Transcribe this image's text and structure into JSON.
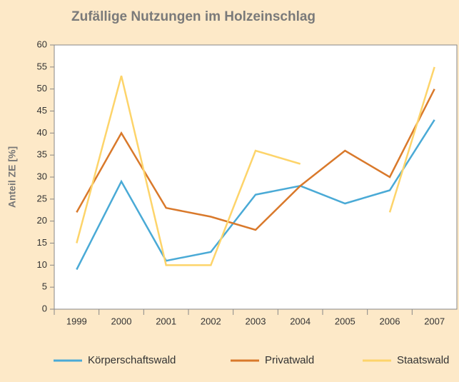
{
  "chart_data": {
    "type": "line",
    "title": "Zufällige Nutzungen im Holzeinschlag",
    "y_label": "Anteil ZE [%]",
    "categories": [
      "1999",
      "2000",
      "2001",
      "2002",
      "2003",
      "2004",
      "2005",
      "2006",
      "2007"
    ],
    "series": [
      {
        "name": "Körperschaftswald",
        "color": "#4aaad6",
        "values": [
          9,
          29,
          11,
          13,
          26,
          28,
          24,
          27,
          43
        ]
      },
      {
        "name": "Privatwald",
        "color": "#d9792b",
        "values": [
          22,
          40,
          23,
          21,
          18,
          28,
          36,
          30,
          50
        ]
      },
      {
        "name": "Staatswald",
        "color": "#fdd46a",
        "values": [
          15,
          53,
          10,
          10,
          36,
          33,
          null,
          22,
          55
        ]
      }
    ],
    "ylim": [
      0,
      60
    ],
    "yticks": [
      0,
      5,
      10,
      15,
      20,
      25,
      30,
      35,
      40,
      45,
      50,
      55,
      60
    ],
    "legend": "bottom"
  }
}
